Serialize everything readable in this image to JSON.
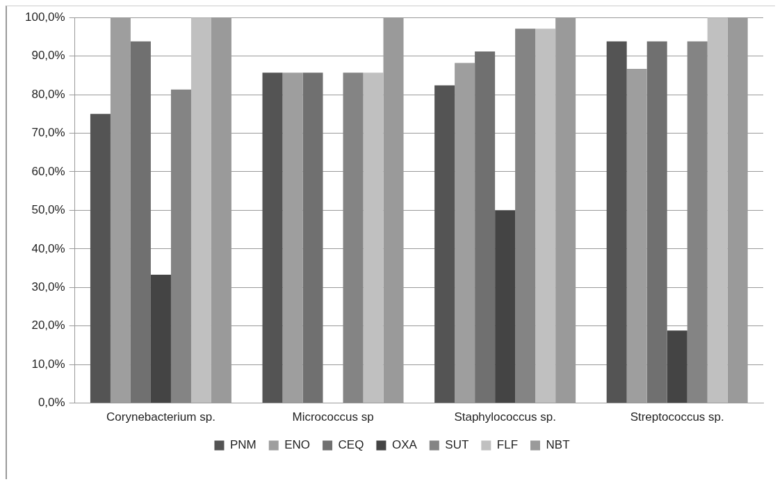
{
  "chart_data": {
    "type": "bar",
    "categories": [
      "Corynebacterium sp.",
      "Micrococcus sp",
      "Staphylococcus sp.",
      "Streptococcus sp."
    ],
    "series": [
      {
        "name": "PNM",
        "color": "#545454",
        "values": [
          75.0,
          85.7,
          82.4,
          93.8
        ]
      },
      {
        "name": "ENO",
        "color": "#9e9e9e",
        "values": [
          100.0,
          85.7,
          88.2,
          86.7
        ]
      },
      {
        "name": "CEQ",
        "color": "#707070",
        "values": [
          93.8,
          85.7,
          91.2,
          93.8
        ]
      },
      {
        "name": "OXA",
        "color": "#444444",
        "values": [
          33.3,
          0,
          50.0,
          18.8
        ]
      },
      {
        "name": "SUT",
        "color": "#848484",
        "values": [
          81.3,
          85.7,
          97.1,
          93.8
        ]
      },
      {
        "name": "FLF",
        "color": "#c0c0c0",
        "values": [
          100.0,
          85.7,
          97.1,
          100.0
        ]
      },
      {
        "name": "NBT",
        "color": "#9a9a9a",
        "values": [
          100.0,
          100.0,
          100.0,
          100.0
        ]
      }
    ],
    "ylim": [
      0,
      100
    ],
    "yticks": [
      {
        "value": 0,
        "label": "0,0%"
      },
      {
        "value": 10,
        "label": "10,0%"
      },
      {
        "value": 20,
        "label": "20,0%"
      },
      {
        "value": 30,
        "label": "30,0%"
      },
      {
        "value": 40,
        "label": "40,0%"
      },
      {
        "value": 50,
        "label": "50,0%"
      },
      {
        "value": 60,
        "label": "60,0%"
      },
      {
        "value": 70,
        "label": "70,0%"
      },
      {
        "value": 80,
        "label": "80,0%"
      },
      {
        "value": 90,
        "label": "90,0%"
      },
      {
        "value": 100,
        "label": "100,0%"
      }
    ],
    "grid": "y",
    "legend": "bottom"
  }
}
